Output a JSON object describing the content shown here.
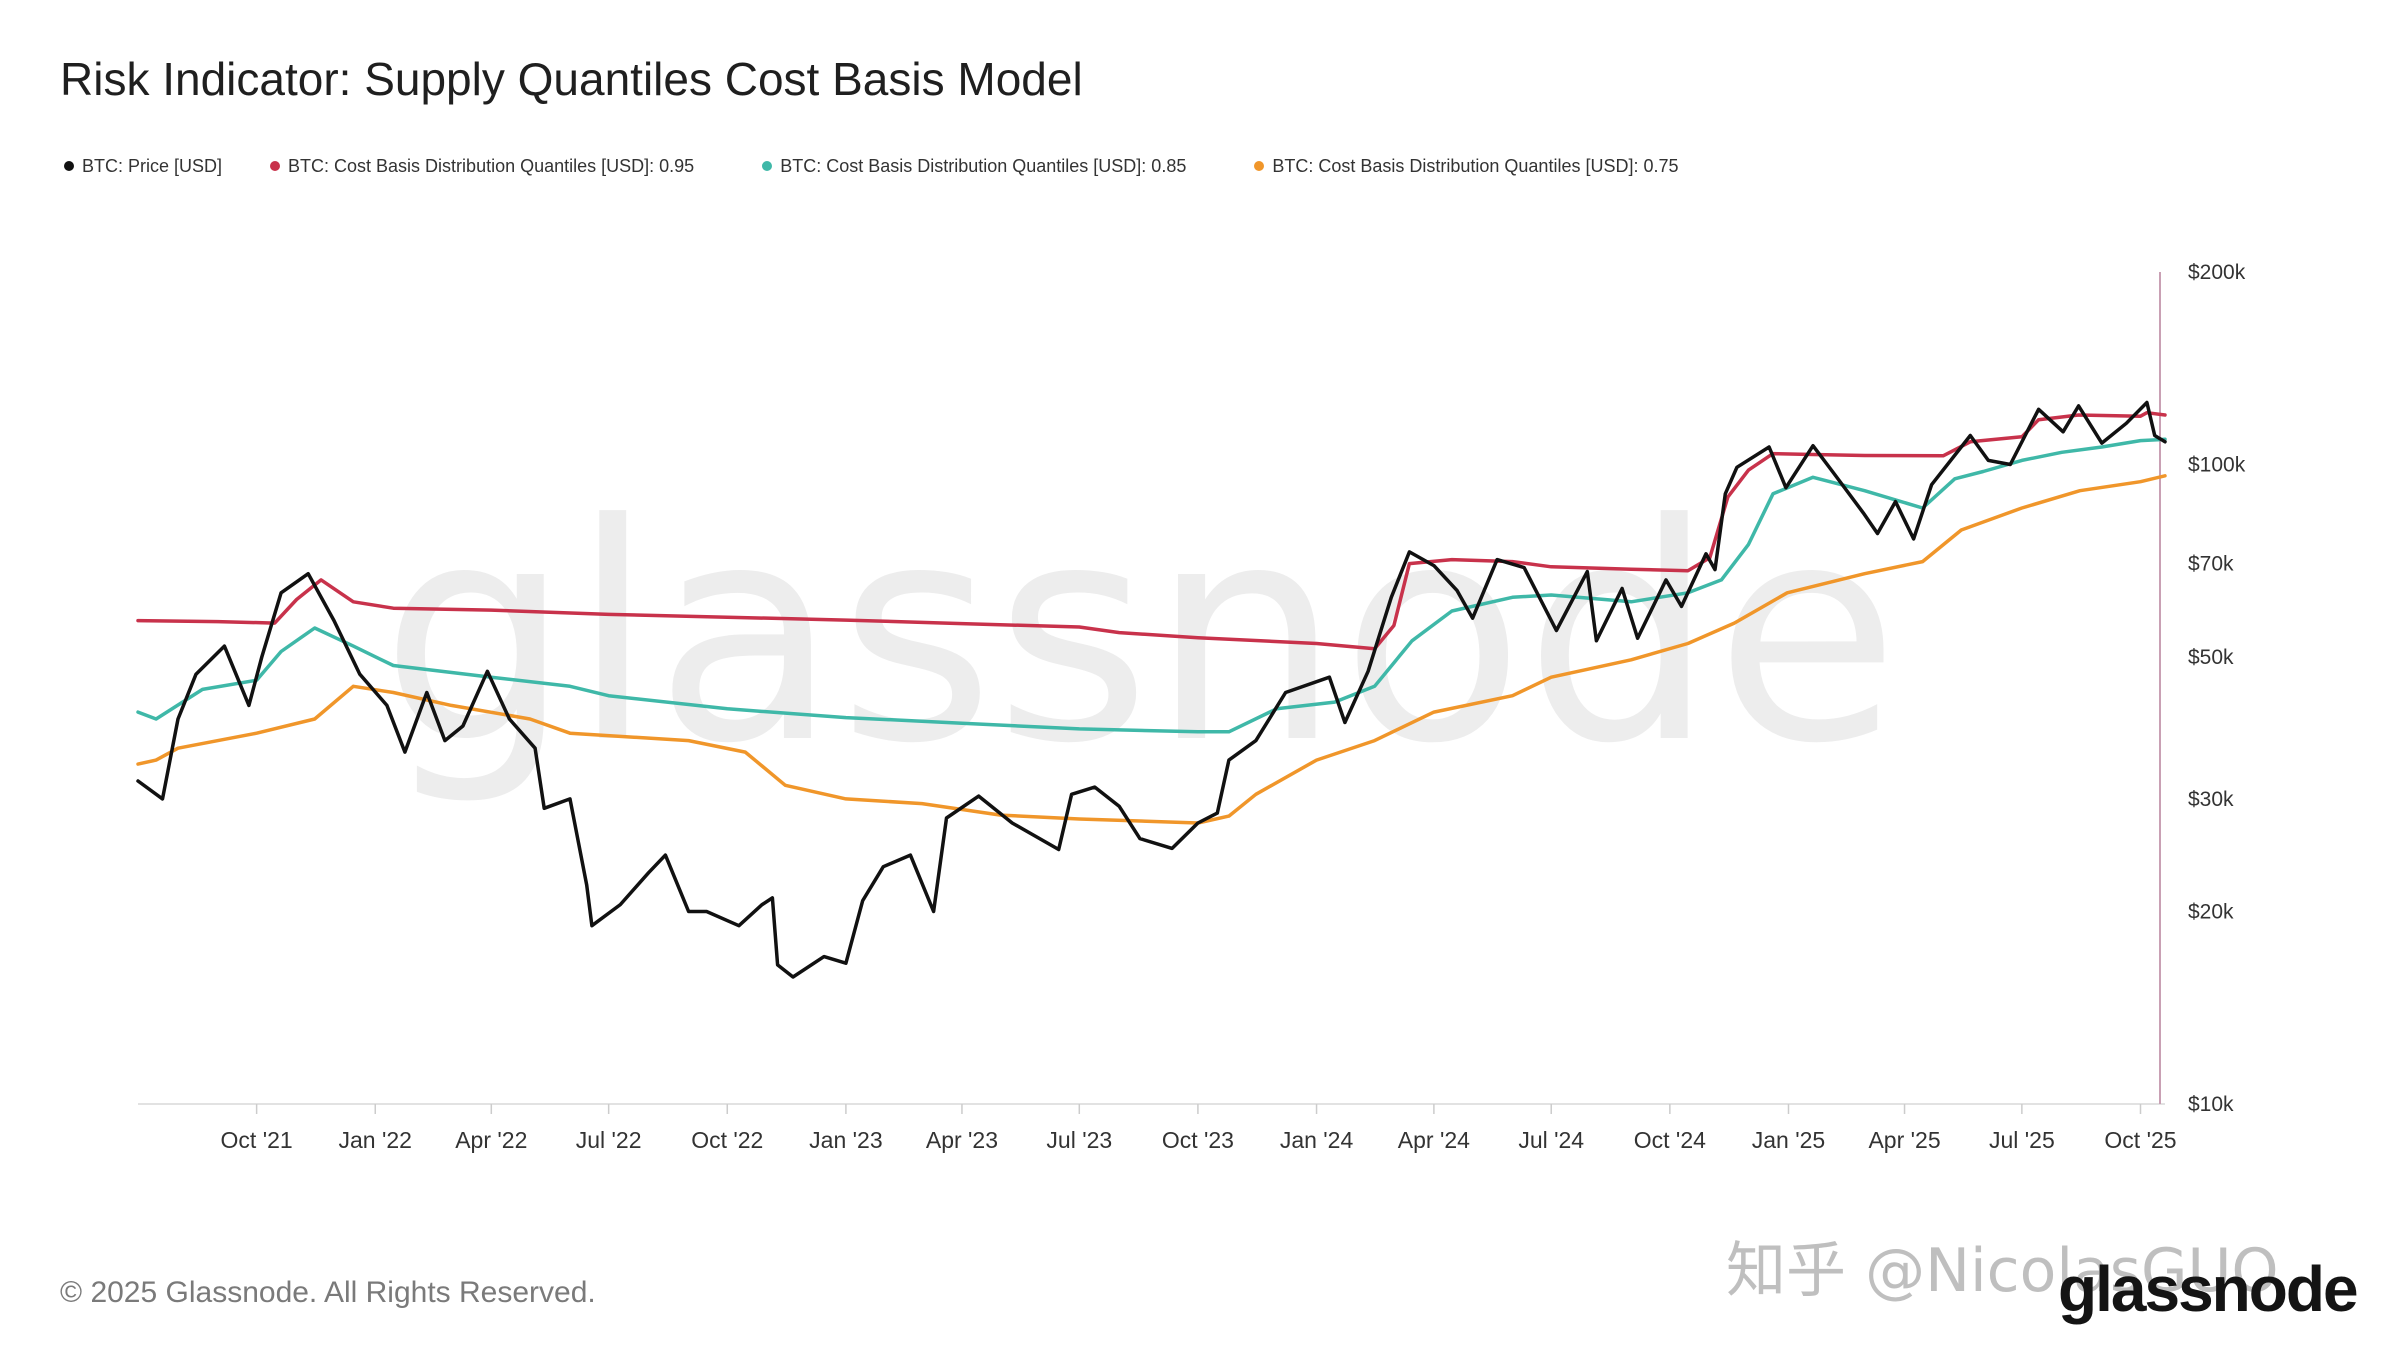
{
  "title": "Risk Indicator: Supply Quantiles Cost Basis Model",
  "footer": {
    "copyright": "© 2025 Glassnode. All Rights Reserved.",
    "brand": "glassnode",
    "watermark": "知乎 @NicolasGUO"
  },
  "colors": {
    "price": "#111111",
    "q95": "#c8324b",
    "q85": "#3fb8a8",
    "q75": "#f0962a",
    "grid": "#eeeeee",
    "axis": "#c9a0b4",
    "text": "#333333"
  },
  "chart_data": {
    "type": "line",
    "title": "Risk Indicator: Supply Quantiles Cost Basis Model",
    "xlabel": "",
    "ylabel": "",
    "y_scale": "log",
    "ylim": [
      10000,
      200000
    ],
    "xlim": [
      "2021-07-01",
      "2025-10-20"
    ],
    "y_ticks": [
      {
        "value": 200000,
        "label": "$200k"
      },
      {
        "value": 100000,
        "label": "$100k"
      },
      {
        "value": 70000,
        "label": "$70k"
      },
      {
        "value": 50000,
        "label": "$50k"
      },
      {
        "value": 30000,
        "label": "$30k"
      },
      {
        "value": 20000,
        "label": "$20k"
      },
      {
        "value": 10000,
        "label": "$10k"
      }
    ],
    "x_ticks": [
      {
        "date": "2021-10-01",
        "label": "Oct '21"
      },
      {
        "date": "2022-01-01",
        "label": "Jan '22"
      },
      {
        "date": "2022-04-01",
        "label": "Apr '22"
      },
      {
        "date": "2022-07-01",
        "label": "Jul '22"
      },
      {
        "date": "2022-10-01",
        "label": "Oct '22"
      },
      {
        "date": "2023-01-01",
        "label": "Jan '23"
      },
      {
        "date": "2023-04-01",
        "label": "Apr '23"
      },
      {
        "date": "2023-07-01",
        "label": "Jul '23"
      },
      {
        "date": "2023-10-01",
        "label": "Oct '23"
      },
      {
        "date": "2024-01-01",
        "label": "Jan '24"
      },
      {
        "date": "2024-04-01",
        "label": "Apr '24"
      },
      {
        "date": "2024-07-01",
        "label": "Jul '24"
      },
      {
        "date": "2024-10-01",
        "label": "Oct '24"
      },
      {
        "date": "2025-01-01",
        "label": "Jan '25"
      },
      {
        "date": "2025-04-01",
        "label": "Apr '25"
      },
      {
        "date": "2025-07-01",
        "label": "Jul '25"
      },
      {
        "date": "2025-10-01",
        "label": "Oct '25"
      }
    ],
    "grid": true,
    "legend_position": "top-left",
    "series": [
      {
        "name": "BTC: Price [USD]",
        "color": "#111111",
        "points": [
          [
            "2021-07-01",
            32000
          ],
          [
            "2021-07-20",
            30000
          ],
          [
            "2021-08-01",
            40000
          ],
          [
            "2021-08-15",
            47000
          ],
          [
            "2021-09-06",
            52000
          ],
          [
            "2021-09-25",
            42000
          ],
          [
            "2021-10-05",
            50000
          ],
          [
            "2021-10-20",
            63000
          ],
          [
            "2021-11-10",
            67500
          ],
          [
            "2021-11-30",
            57000
          ],
          [
            "2021-12-20",
            47000
          ],
          [
            "2022-01-10",
            42000
          ],
          [
            "2022-01-24",
            35500
          ],
          [
            "2022-02-10",
            44000
          ],
          [
            "2022-02-24",
            37000
          ],
          [
            "2022-03-10",
            39000
          ],
          [
            "2022-03-29",
            47500
          ],
          [
            "2022-04-15",
            40000
          ],
          [
            "2022-05-05",
            36000
          ],
          [
            "2022-05-12",
            29000
          ],
          [
            "2022-06-01",
            30000
          ],
          [
            "2022-06-14",
            22000
          ],
          [
            "2022-06-18",
            19000
          ],
          [
            "2022-07-10",
            20500
          ],
          [
            "2022-08-01",
            23000
          ],
          [
            "2022-08-14",
            24500
          ],
          [
            "2022-09-01",
            20000
          ],
          [
            "2022-09-15",
            20000
          ],
          [
            "2022-10-10",
            19000
          ],
          [
            "2022-10-28",
            20500
          ],
          [
            "2022-11-05",
            21000
          ],
          [
            "2022-11-09",
            16500
          ],
          [
            "2022-11-21",
            15800
          ],
          [
            "2022-12-15",
            17000
          ],
          [
            "2023-01-01",
            16600
          ],
          [
            "2023-01-14",
            20800
          ],
          [
            "2023-01-30",
            23500
          ],
          [
            "2023-02-20",
            24500
          ],
          [
            "2023-03-10",
            20000
          ],
          [
            "2023-03-20",
            28000
          ],
          [
            "2023-04-14",
            30300
          ],
          [
            "2023-05-10",
            27500
          ],
          [
            "2023-06-15",
            25000
          ],
          [
            "2023-06-25",
            30500
          ],
          [
            "2023-07-13",
            31300
          ],
          [
            "2023-08-01",
            29200
          ],
          [
            "2023-08-17",
            26000
          ],
          [
            "2023-09-11",
            25100
          ],
          [
            "2023-10-01",
            27500
          ],
          [
            "2023-10-16",
            28500
          ],
          [
            "2023-10-25",
            34500
          ],
          [
            "2023-11-15",
            37000
          ],
          [
            "2023-12-08",
            44000
          ],
          [
            "2024-01-11",
            46500
          ],
          [
            "2024-01-23",
            39500
          ],
          [
            "2024-02-10",
            47500
          ],
          [
            "2024-02-28",
            62000
          ],
          [
            "2024-03-13",
            73000
          ],
          [
            "2024-04-01",
            69500
          ],
          [
            "2024-04-19",
            63500
          ],
          [
            "2024-05-01",
            57500
          ],
          [
            "2024-05-20",
            71000
          ],
          [
            "2024-06-10",
            69000
          ],
          [
            "2024-07-05",
            55000
          ],
          [
            "2024-07-29",
            68000
          ],
          [
            "2024-08-05",
            53000
          ],
          [
            "2024-08-25",
            64000
          ],
          [
            "2024-09-06",
            53500
          ],
          [
            "2024-09-28",
            66000
          ],
          [
            "2024-10-10",
            60000
          ],
          [
            "2024-10-29",
            72500
          ],
          [
            "2024-11-05",
            68500
          ],
          [
            "2024-11-13",
            90000
          ],
          [
            "2024-11-22",
            99000
          ],
          [
            "2024-12-17",
            106500
          ],
          [
            "2024-12-30",
            92000
          ],
          [
            "2025-01-20",
            107000
          ],
          [
            "2025-02-05",
            97000
          ],
          [
            "2025-02-28",
            84000
          ],
          [
            "2025-03-11",
            78000
          ],
          [
            "2025-03-25",
            87500
          ],
          [
            "2025-04-08",
            76500
          ],
          [
            "2025-04-22",
            93000
          ],
          [
            "2025-05-22",
            111000
          ],
          [
            "2025-06-05",
            101500
          ],
          [
            "2025-06-22",
            100000
          ],
          [
            "2025-07-14",
            122000
          ],
          [
            "2025-08-02",
            112500
          ],
          [
            "2025-08-14",
            123500
          ],
          [
            "2025-09-01",
            108000
          ],
          [
            "2025-09-20",
            116000
          ],
          [
            "2025-10-06",
            125000
          ],
          [
            "2025-10-12",
            111000
          ],
          [
            "2025-10-20",
            108500
          ]
        ]
      },
      {
        "name": "BTC: Cost Basis Distribution Quantiles [USD]: 0.95",
        "color": "#c8324b",
        "points": [
          [
            "2021-07-01",
            57000
          ],
          [
            "2021-09-01",
            56800
          ],
          [
            "2021-10-15",
            56500
          ],
          [
            "2021-11-01",
            61500
          ],
          [
            "2021-11-20",
            66000
          ],
          [
            "2021-12-15",
            61000
          ],
          [
            "2022-01-15",
            59600
          ],
          [
            "2022-04-01",
            59200
          ],
          [
            "2022-07-01",
            58300
          ],
          [
            "2022-10-01",
            57700
          ],
          [
            "2023-01-01",
            57100
          ],
          [
            "2023-04-01",
            56400
          ],
          [
            "2023-07-01",
            55700
          ],
          [
            "2023-08-01",
            54600
          ],
          [
            "2023-10-01",
            53600
          ],
          [
            "2024-01-01",
            52500
          ],
          [
            "2024-02-15",
            51500
          ],
          [
            "2024-03-01",
            56000
          ],
          [
            "2024-03-13",
            70000
          ],
          [
            "2024-04-15",
            71000
          ],
          [
            "2024-06-01",
            70500
          ],
          [
            "2024-07-01",
            69200
          ],
          [
            "2024-09-01",
            68600
          ],
          [
            "2024-10-15",
            68200
          ],
          [
            "2024-11-01",
            71500
          ],
          [
            "2024-11-15",
            89000
          ],
          [
            "2024-12-01",
            98000
          ],
          [
            "2024-12-20",
            104000
          ],
          [
            "2025-01-15",
            103700
          ],
          [
            "2025-03-01",
            103300
          ],
          [
            "2025-05-01",
            103200
          ],
          [
            "2025-05-22",
            108500
          ],
          [
            "2025-07-01",
            110500
          ],
          [
            "2025-07-14",
            117500
          ],
          [
            "2025-08-14",
            119500
          ],
          [
            "2025-10-01",
            119000
          ],
          [
            "2025-10-06",
            120500
          ],
          [
            "2025-10-20",
            119500
          ]
        ]
      },
      {
        "name": "BTC: Cost Basis Distribution Quantiles [USD]: 0.85",
        "color": "#3fb8a8",
        "points": [
          [
            "2021-07-01",
            41000
          ],
          [
            "2021-07-15",
            40000
          ],
          [
            "2021-08-20",
            44500
          ],
          [
            "2021-10-01",
            46000
          ],
          [
            "2021-10-20",
            51000
          ],
          [
            "2021-11-15",
            55500
          ],
          [
            "2021-12-15",
            52000
          ],
          [
            "2022-01-15",
            48500
          ],
          [
            "2022-04-01",
            46500
          ],
          [
            "2022-06-01",
            45000
          ],
          [
            "2022-07-01",
            43500
          ],
          [
            "2022-10-01",
            41500
          ],
          [
            "2023-01-01",
            40200
          ],
          [
            "2023-04-01",
            39400
          ],
          [
            "2023-07-01",
            38600
          ],
          [
            "2023-10-01",
            38200
          ],
          [
            "2023-10-25",
            38200
          ],
          [
            "2023-12-01",
            41500
          ],
          [
            "2024-01-15",
            42500
          ],
          [
            "2024-02-15",
            45000
          ],
          [
            "2024-03-15",
            53000
          ],
          [
            "2024-04-15",
            59000
          ],
          [
            "2024-06-01",
            62000
          ],
          [
            "2024-07-01",
            62500
          ],
          [
            "2024-09-01",
            61000
          ],
          [
            "2024-10-15",
            63000
          ],
          [
            "2024-11-10",
            66000
          ],
          [
            "2024-12-01",
            75000
          ],
          [
            "2024-12-20",
            90000
          ],
          [
            "2025-01-20",
            95500
          ],
          [
            "2025-03-01",
            91000
          ],
          [
            "2025-04-15",
            85500
          ],
          [
            "2025-05-10",
            95000
          ],
          [
            "2025-06-01",
            97500
          ],
          [
            "2025-07-01",
            101500
          ],
          [
            "2025-08-01",
            104500
          ],
          [
            "2025-09-01",
            106500
          ],
          [
            "2025-10-01",
            109000
          ],
          [
            "2025-10-20",
            109500
          ]
        ]
      },
      {
        "name": "BTC: Cost Basis Distribution Quantiles [USD]: 0.75",
        "color": "#f0962a",
        "points": [
          [
            "2021-07-01",
            34000
          ],
          [
            "2021-07-15",
            34500
          ],
          [
            "2021-08-01",
            36000
          ],
          [
            "2021-10-01",
            38000
          ],
          [
            "2021-11-15",
            40000
          ],
          [
            "2021-12-15",
            45000
          ],
          [
            "2022-01-15",
            44000
          ],
          [
            "2022-03-01",
            42000
          ],
          [
            "2022-05-01",
            40000
          ],
          [
            "2022-06-01",
            38000
          ],
          [
            "2022-09-01",
            37000
          ],
          [
            "2022-10-15",
            35500
          ],
          [
            "2022-11-15",
            31500
          ],
          [
            "2023-01-01",
            30000
          ],
          [
            "2023-03-01",
            29500
          ],
          [
            "2023-05-01",
            28300
          ],
          [
            "2023-07-01",
            27900
          ],
          [
            "2023-10-01",
            27500
          ],
          [
            "2023-10-25",
            28200
          ],
          [
            "2023-11-15",
            30500
          ],
          [
            "2024-01-01",
            34500
          ],
          [
            "2024-02-15",
            37000
          ],
          [
            "2024-04-01",
            41000
          ],
          [
            "2024-06-01",
            43500
          ],
          [
            "2024-07-01",
            46500
          ],
          [
            "2024-09-01",
            49500
          ],
          [
            "2024-10-15",
            52500
          ],
          [
            "2024-11-20",
            56500
          ],
          [
            "2024-12-31",
            63000
          ],
          [
            "2025-03-01",
            67500
          ],
          [
            "2025-04-15",
            70500
          ],
          [
            "2025-05-15",
            79000
          ],
          [
            "2025-07-01",
            85500
          ],
          [
            "2025-08-15",
            91000
          ],
          [
            "2025-10-01",
            94000
          ],
          [
            "2025-10-20",
            96000
          ]
        ]
      }
    ]
  }
}
